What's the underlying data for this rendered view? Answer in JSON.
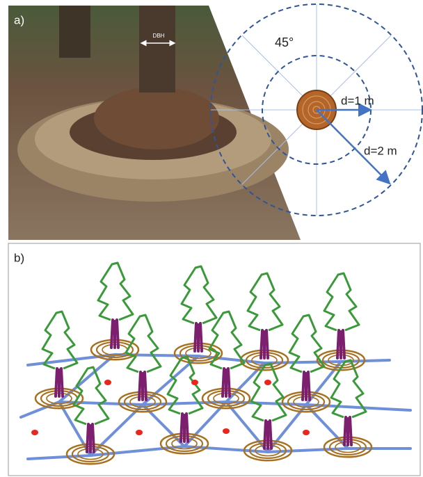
{
  "panel_a": {
    "label": "a)",
    "dbh": "DBH",
    "angle": "45°",
    "d1": "d=1 m",
    "d2": "d=2 m"
  },
  "panel_b": {
    "label": "b)"
  }
}
